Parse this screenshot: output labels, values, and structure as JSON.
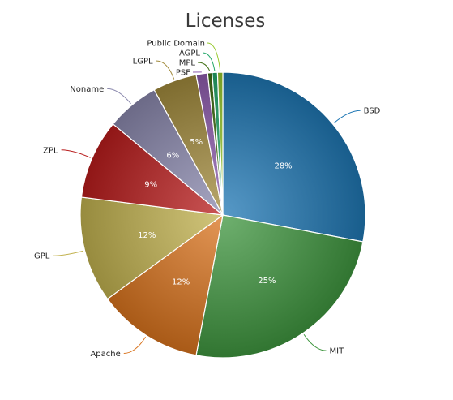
{
  "chart_data": {
    "type": "pie",
    "title": "Licenses",
    "show_percent_labels_min": 4,
    "slices": [
      {
        "label": "BSD",
        "value": 28,
        "color": "#1f77b4"
      },
      {
        "label": "MIT",
        "value": 25,
        "color": "#3f963f"
      },
      {
        "label": "Apache",
        "value": 12,
        "color": "#d9731d"
      },
      {
        "label": "GPL",
        "value": 12,
        "color": "#c2b24f"
      },
      {
        "label": "ZPL",
        "value": 9,
        "color": "#b81c1c"
      },
      {
        "label": "Noname",
        "value": 6,
        "color": "#8a88ad"
      },
      {
        "label": "LGPL",
        "value": 5,
        "color": "#a18a3c"
      },
      {
        "label": "PSF",
        "value": 1.3,
        "color": "#8e5cad"
      },
      {
        "label": "MPL",
        "value": 0.5,
        "color": "#3f6e12"
      },
      {
        "label": "AGPL",
        "value": 0.6,
        "color": "#24a86a"
      },
      {
        "label": "Public Domain",
        "value": 0.6,
        "color": "#97c92e"
      }
    ],
    "percent_labels": [
      "28%",
      "25%",
      "12%",
      "12%",
      "9%",
      "6%",
      "5%"
    ]
  }
}
